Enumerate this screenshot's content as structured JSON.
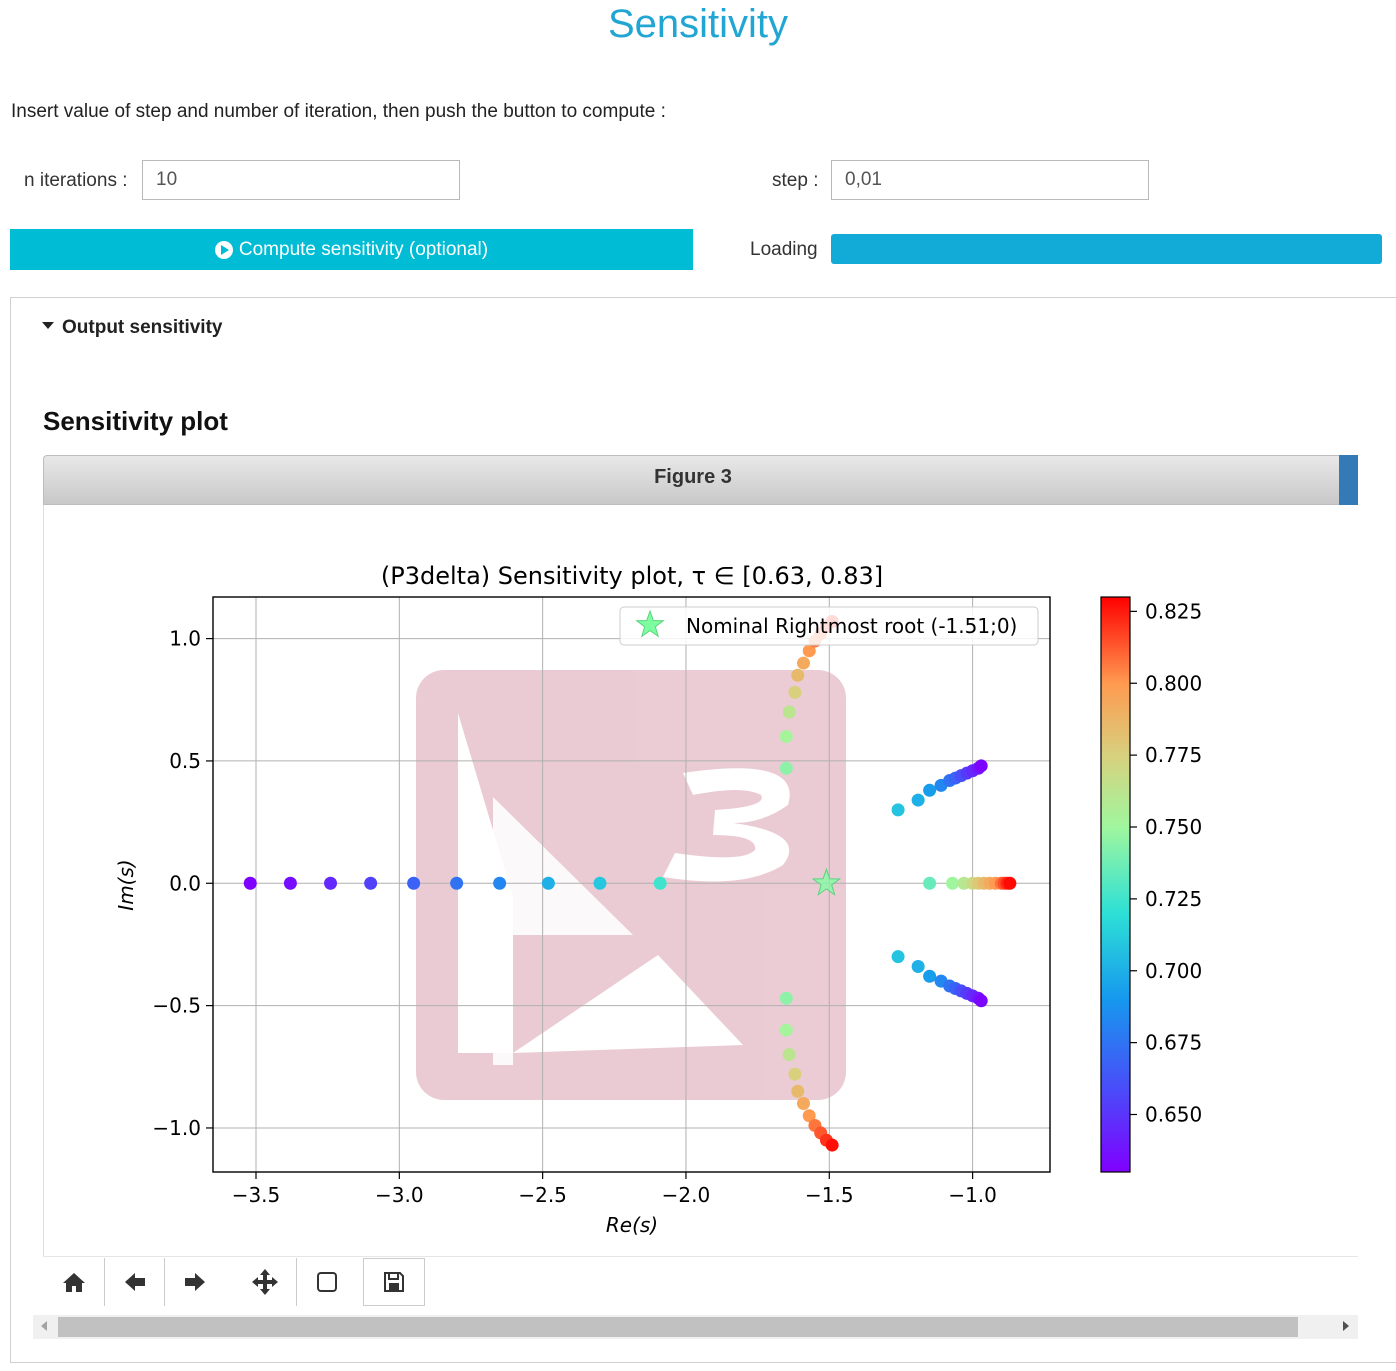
{
  "page": {
    "title": "Sensitivity"
  },
  "instructions": "Insert value of step and number of iteration, then push the button to compute :",
  "form": {
    "n_iterations_label": "n iterations :",
    "n_iterations_value": "10",
    "step_label": "step :",
    "step_value": "0,01",
    "compute_label": "Compute sensitivity (optional)",
    "loading_label": "Loading",
    "progress": 1.0
  },
  "output": {
    "toggle_label": "Output sensitivity",
    "plot_heading": "Sensitivity plot",
    "figure_title": "Figure 3"
  },
  "toolbar": {
    "buttons": [
      "home-icon",
      "back-arrow-icon",
      "forward-arrow-icon",
      "pan-icon",
      "zoom-rect-icon",
      "save-icon"
    ]
  },
  "chart_data": {
    "type": "scatter",
    "title": "(P3delta) Sensitivity plot, τ ∈ [0.63, 0.83]",
    "xlabel": "Re(s)",
    "ylabel": "Im(s)",
    "xlim": [
      -3.65,
      -0.73
    ],
    "ylim": [
      -1.18,
      1.17
    ],
    "xticks": [
      -3.5,
      -3.0,
      -2.5,
      -2.0,
      -1.5,
      -1.0
    ],
    "xtick_labels": [
      "−3.5",
      "−3.0",
      "−2.5",
      "−2.0",
      "−1.5",
      "−1.0"
    ],
    "yticks": [
      1.0,
      0.5,
      0.0,
      -0.5,
      -1.0
    ],
    "ytick_labels": [
      "1.0",
      "0.5",
      "0.0",
      "−0.5",
      "−1.0"
    ],
    "grid": true,
    "legend": {
      "position": "top-right",
      "entry": "Nominal Rightmost root (-1.51;0)"
    },
    "nominal_root": {
      "x": -1.51,
      "y": 0.0,
      "color": "#7dffa0"
    },
    "colorbar": {
      "colormap": "rainbow",
      "range": [
        0.63,
        0.83
      ],
      "ticks": [
        0.825,
        0.8,
        0.775,
        0.75,
        0.725,
        0.7,
        0.675,
        0.65
      ],
      "tick_labels": [
        "0.825",
        "0.800",
        "0.775",
        "0.750",
        "0.725",
        "0.700",
        "0.675",
        "0.650"
      ]
    },
    "series": [
      {
        "points": [
          [
            -3.52,
            0,
            0.63
          ],
          [
            -3.38,
            0,
            0.635
          ],
          [
            -3.24,
            0,
            0.645
          ],
          [
            -3.1,
            0,
            0.655
          ],
          [
            -2.95,
            0,
            0.668
          ],
          [
            -2.8,
            0,
            0.675
          ],
          [
            -2.65,
            0,
            0.683
          ],
          [
            -2.48,
            0,
            0.7
          ],
          [
            -2.3,
            0,
            0.71
          ],
          [
            -2.09,
            0,
            0.725
          ]
        ]
      },
      {
        "points": [
          [
            -1.65,
            0.47,
            0.745
          ],
          [
            -1.65,
            0.6,
            0.752
          ],
          [
            -1.64,
            0.7,
            0.762
          ],
          [
            -1.62,
            0.78,
            0.775
          ],
          [
            -1.61,
            0.85,
            0.785
          ],
          [
            -1.59,
            0.9,
            0.793
          ],
          [
            -1.57,
            0.95,
            0.8
          ],
          [
            -1.55,
            0.99,
            0.807
          ],
          [
            -1.53,
            1.02,
            0.813
          ],
          [
            -1.51,
            1.05,
            0.82
          ],
          [
            -1.49,
            1.07,
            0.827
          ]
        ]
      },
      {
        "points": [
          [
            -1.65,
            -0.47,
            0.745
          ],
          [
            -1.65,
            -0.6,
            0.752
          ],
          [
            -1.64,
            -0.7,
            0.762
          ],
          [
            -1.62,
            -0.78,
            0.775
          ],
          [
            -1.61,
            -0.85,
            0.785
          ],
          [
            -1.59,
            -0.9,
            0.793
          ],
          [
            -1.57,
            -0.95,
            0.8
          ],
          [
            -1.55,
            -0.99,
            0.807
          ],
          [
            -1.53,
            -1.02,
            0.813
          ],
          [
            -1.51,
            -1.05,
            0.82
          ],
          [
            -1.49,
            -1.07,
            0.827
          ]
        ]
      },
      {
        "points": [
          [
            -1.15,
            0,
            0.735
          ],
          [
            -1.07,
            0,
            0.75
          ],
          [
            -1.03,
            0,
            0.76
          ],
          [
            -1.0,
            0,
            0.77
          ],
          [
            -0.98,
            0,
            0.778
          ],
          [
            -0.96,
            0,
            0.785
          ],
          [
            -0.94,
            0,
            0.792
          ],
          [
            -0.92,
            0,
            0.8
          ],
          [
            -0.9,
            0,
            0.808
          ],
          [
            -0.89,
            0,
            0.815
          ],
          [
            -0.88,
            0,
            0.822
          ],
          [
            -0.87,
            0,
            0.828
          ]
        ]
      },
      {
        "points": [
          [
            -1.26,
            0.3,
            0.708
          ],
          [
            -1.19,
            0.34,
            0.7
          ],
          [
            -1.15,
            0.38,
            0.692
          ],
          [
            -1.11,
            0.4,
            0.683
          ],
          [
            -1.08,
            0.42,
            0.675
          ],
          [
            -1.06,
            0.43,
            0.668
          ],
          [
            -1.04,
            0.44,
            0.66
          ],
          [
            -1.02,
            0.45,
            0.652
          ],
          [
            -1.0,
            0.46,
            0.645
          ],
          [
            -0.98,
            0.47,
            0.638
          ],
          [
            -0.97,
            0.48,
            0.632
          ]
        ]
      },
      {
        "points": [
          [
            -1.26,
            -0.3,
            0.708
          ],
          [
            -1.19,
            -0.34,
            0.7
          ],
          [
            -1.15,
            -0.38,
            0.692
          ],
          [
            -1.11,
            -0.4,
            0.683
          ],
          [
            -1.08,
            -0.42,
            0.675
          ],
          [
            -1.06,
            -0.43,
            0.668
          ],
          [
            -1.04,
            -0.44,
            0.66
          ],
          [
            -1.02,
            -0.45,
            0.652
          ],
          [
            -1.0,
            -0.46,
            0.645
          ],
          [
            -0.98,
            -0.47,
            0.638
          ],
          [
            -0.97,
            -0.48,
            0.632
          ]
        ]
      }
    ]
  }
}
